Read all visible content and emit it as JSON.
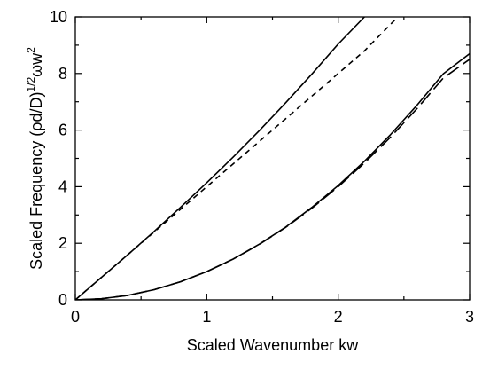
{
  "chart_data": {
    "type": "line",
    "xlabel": "Scaled Wavenumber kw",
    "ylabel": {
      "prefix": "Scaled Frequency (ρd/D)",
      "exp1": "1/2",
      "middle": "ωw",
      "exp2": "2"
    },
    "xlim": [
      0,
      3
    ],
    "ylim": [
      0,
      10
    ],
    "x_ticks": [
      0,
      1,
      2,
      3
    ],
    "x_tick_labels": [
      "0",
      "1",
      "2",
      "3"
    ],
    "y_ticks": [
      0,
      2,
      4,
      6,
      8,
      10
    ],
    "y_tick_labels": [
      "0",
      "2",
      "4",
      "6",
      "8",
      "10"
    ],
    "grid": false,
    "series": [
      {
        "style": "solid",
        "color": "#000000",
        "x": [
          0,
          0.2,
          0.4,
          0.6,
          0.8,
          1.0,
          1.2,
          1.4,
          1.6,
          1.8,
          2.0,
          2.2
        ],
        "y": [
          0,
          0.8,
          1.6,
          2.42,
          3.27,
          4.14,
          5.04,
          5.98,
          6.96,
          7.98,
          9.04,
          10.0
        ]
      },
      {
        "style": "short-dash",
        "color": "#000000",
        "x": [
          0,
          0.2,
          0.4,
          0.6,
          0.8,
          1.0,
          1.2,
          1.4,
          1.6,
          1.8,
          2.0,
          2.2,
          2.45
        ],
        "y": [
          0,
          0.8,
          1.6,
          2.4,
          3.2,
          4.0,
          4.8,
          5.6,
          6.4,
          7.2,
          8.0,
          8.8,
          9.98
        ]
      },
      {
        "style": "solid",
        "color": "#000000",
        "x": [
          0,
          0.2,
          0.4,
          0.6,
          0.8,
          1.0,
          1.2,
          1.4,
          1.6,
          1.8,
          2.0,
          2.2,
          2.4,
          2.6,
          2.8,
          3.0
        ],
        "y": [
          0,
          0.04,
          0.16,
          0.36,
          0.64,
          1.0,
          1.44,
          1.97,
          2.57,
          3.27,
          4.04,
          4.9,
          5.85,
          6.88,
          7.99,
          8.7
        ]
      },
      {
        "style": "long-dash",
        "color": "#000000",
        "x": [
          0,
          0.2,
          0.4,
          0.6,
          0.8,
          1.0,
          1.2,
          1.4,
          1.6,
          1.8,
          2.0,
          2.2,
          2.4,
          2.6,
          2.8,
          3.0
        ],
        "y": [
          0,
          0.04,
          0.16,
          0.36,
          0.64,
          1.0,
          1.44,
          1.96,
          2.56,
          3.24,
          4.0,
          4.84,
          5.76,
          6.76,
          7.84,
          8.5
        ]
      }
    ]
  }
}
